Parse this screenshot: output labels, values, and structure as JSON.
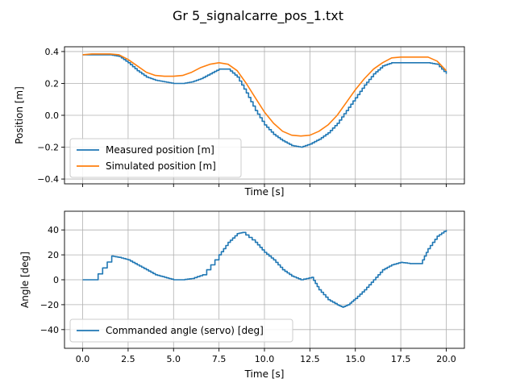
{
  "figure": {
    "title": "Gr 5_signalcarre_pos_1.txt",
    "background": "#ffffff"
  },
  "chart_data": [
    {
      "type": "line",
      "xlabel": "Time [s]",
      "ylabel": "Position [m]",
      "xlim": [
        -1.0,
        21.0
      ],
      "ylim": [
        -0.43,
        0.43
      ],
      "xticks": [
        0,
        2.5,
        5,
        7.5,
        10,
        12.5,
        15,
        17.5,
        20
      ],
      "show_xtick_labels": false,
      "yticks": [
        -0.4,
        -0.2,
        0.0,
        0.2,
        0.4
      ],
      "ytick_labels": [
        "−0.4",
        "−0.2",
        "0.0",
        "0.2",
        "0.4"
      ],
      "grid": true,
      "legend": "lower-left",
      "series": [
        {
          "name": "Measured position [m]",
          "color": "#1f77b4",
          "stepped": true,
          "x": [
            0,
            0.5,
            1.0,
            1.5,
            2.0,
            2.5,
            3.0,
            3.5,
            4.0,
            4.5,
            5.0,
            5.5,
            6.0,
            6.5,
            7.0,
            7.5,
            8.0,
            8.5,
            9.0,
            9.5,
            10.0,
            10.5,
            11.0,
            11.5,
            12.0,
            12.5,
            13.0,
            13.5,
            14.0,
            14.5,
            15.0,
            15.5,
            16.0,
            16.5,
            17.0,
            17.5,
            18.0,
            18.5,
            19.0,
            19.5,
            20.0
          ],
          "y": [
            0.38,
            0.38,
            0.38,
            0.38,
            0.37,
            0.33,
            0.28,
            0.24,
            0.22,
            0.21,
            0.2,
            0.2,
            0.21,
            0.23,
            0.26,
            0.29,
            0.29,
            0.24,
            0.14,
            0.03,
            -0.06,
            -0.12,
            -0.16,
            -0.19,
            -0.2,
            -0.18,
            -0.15,
            -0.11,
            -0.05,
            0.03,
            0.11,
            0.19,
            0.26,
            0.31,
            0.33,
            0.33,
            0.33,
            0.33,
            0.33,
            0.32,
            0.26
          ]
        },
        {
          "name": "Simulated position [m]",
          "color": "#ff7f0e",
          "stepped": false,
          "x": [
            0,
            0.5,
            1.0,
            1.5,
            2.0,
            2.5,
            3.0,
            3.5,
            4.0,
            4.5,
            5.0,
            5.5,
            6.0,
            6.5,
            7.0,
            7.5,
            8.0,
            8.5,
            9.0,
            9.5,
            10.0,
            10.5,
            11.0,
            11.5,
            12.0,
            12.5,
            13.0,
            13.5,
            14.0,
            14.5,
            15.0,
            15.5,
            16.0,
            16.5,
            17.0,
            17.5,
            18.0,
            18.5,
            19.0,
            19.5,
            20.0
          ],
          "y": [
            0.38,
            0.385,
            0.385,
            0.385,
            0.38,
            0.35,
            0.31,
            0.27,
            0.25,
            0.245,
            0.245,
            0.25,
            0.27,
            0.3,
            0.32,
            0.33,
            0.32,
            0.28,
            0.2,
            0.11,
            0.02,
            -0.05,
            -0.1,
            -0.125,
            -0.13,
            -0.125,
            -0.1,
            -0.06,
            0.0,
            0.08,
            0.16,
            0.23,
            0.29,
            0.33,
            0.36,
            0.365,
            0.365,
            0.365,
            0.365,
            0.34,
            0.28
          ]
        }
      ]
    },
    {
      "type": "line",
      "xlabel": "Time [s]",
      "ylabel": "Angle [deg]",
      "xlim": [
        -1.0,
        21.0
      ],
      "ylim": [
        -55,
        55
      ],
      "xticks": [
        0,
        2.5,
        5,
        7.5,
        10,
        12.5,
        15,
        17.5,
        20
      ],
      "xtick_labels": [
        "0.0",
        "2.5",
        "5.0",
        "7.5",
        "10.0",
        "12.5",
        "15.0",
        "17.5",
        "20.0"
      ],
      "show_xtick_labels": true,
      "yticks": [
        -40,
        -20,
        0,
        20,
        40
      ],
      "ytick_labels": [
        "−40",
        "−20",
        "0",
        "20",
        "40"
      ],
      "grid": true,
      "legend": "lower-left",
      "series": [
        {
          "name": "Commanded angle (servo) [deg]",
          "color": "#1f77b4",
          "stepped": true,
          "x": [
            0,
            0.6,
            1.6,
            2.0,
            2.5,
            3.0,
            3.5,
            4.0,
            4.5,
            5.0,
            5.5,
            6.0,
            6.6,
            7.5,
            8.0,
            8.5,
            8.8,
            9.5,
            10.0,
            10.5,
            11.0,
            11.5,
            12.0,
            12.6,
            13.0,
            13.5,
            14.0,
            14.3,
            14.6,
            15.0,
            15.5,
            16.0,
            16.5,
            17.0,
            17.5,
            18.0,
            18.6,
            19.0,
            19.5,
            20.0
          ],
          "y": [
            0,
            0,
            19,
            18,
            16,
            12,
            8,
            4,
            2,
            0,
            0,
            1,
            4,
            20,
            30,
            37,
            38,
            30,
            22,
            16,
            8,
            3,
            0,
            2,
            -8,
            -16,
            -20,
            -22,
            -20,
            -15,
            -8,
            0,
            8,
            12,
            14,
            13,
            13,
            25,
            35,
            40
          ]
        }
      ]
    }
  ]
}
